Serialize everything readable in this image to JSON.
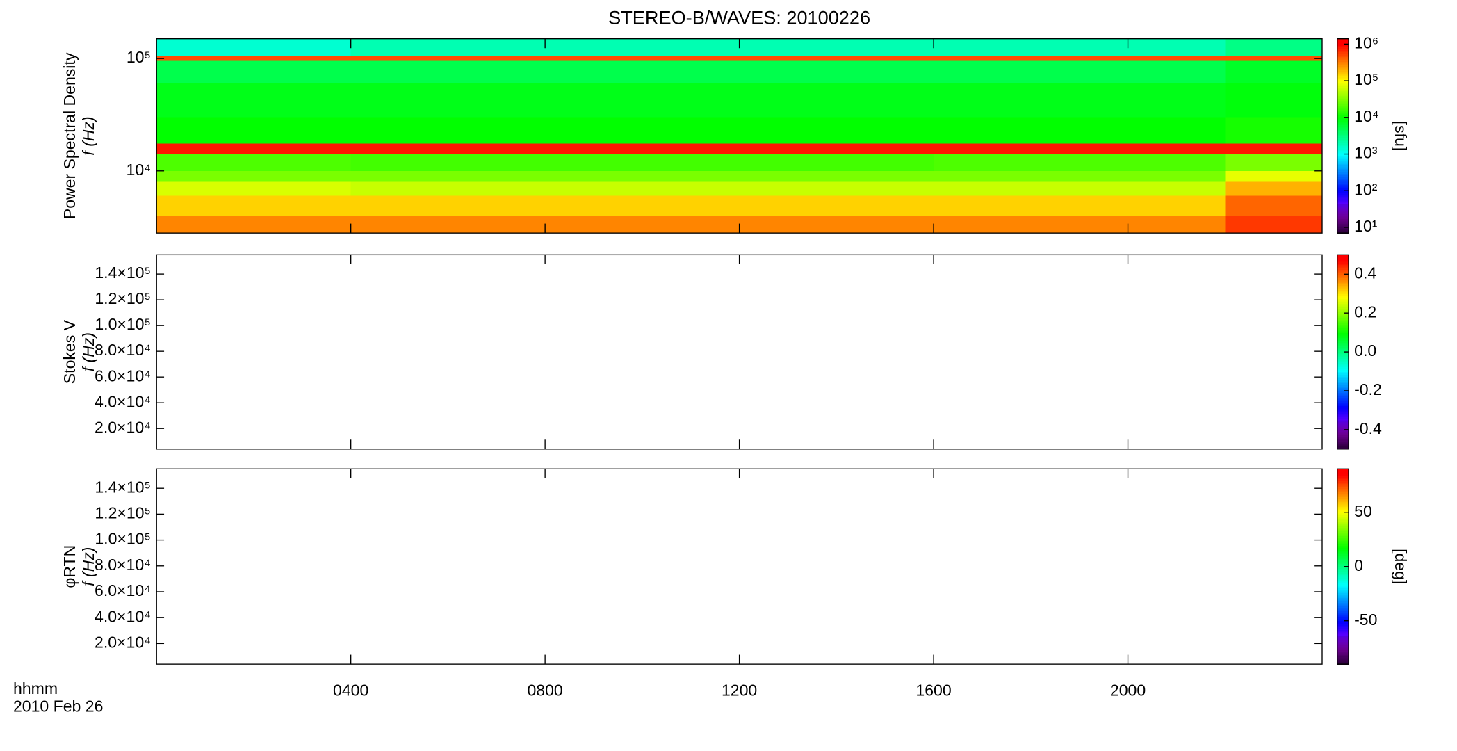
{
  "chart_data": [
    {
      "type": "heatmap",
      "title": "STEREO-B/WAVES: 20100226",
      "ylabel": [
        "Power Spectral Density",
        "f (Hz)"
      ],
      "xlim": [
        0,
        24
      ],
      "ylim": [
        2800,
        150000
      ],
      "ylog": true,
      "yticks": [
        {
          "value": 10000,
          "label": "10⁴"
        },
        {
          "value": 100000,
          "label": "10⁵"
        }
      ],
      "time_edges": [
        0,
        4,
        8,
        12,
        16,
        20,
        22,
        24
      ],
      "freq_edges": [
        2800,
        4000,
        6000,
        8000,
        10000,
        14000,
        17500,
        30000,
        60000,
        95000,
        105000,
        150000
      ],
      "values": [
        [
          300000,
          300000,
          300000,
          300000,
          300000,
          300000,
          600000
        ],
        [
          150000,
          150000,
          150000,
          150000,
          150000,
          150000,
          400000
        ],
        [
          70000,
          60000,
          60000,
          60000,
          60000,
          60000,
          200000
        ],
        [
          30000,
          30000,
          30000,
          30000,
          30000,
          30000,
          80000
        ],
        [
          20000,
          18000,
          18000,
          18000,
          20000,
          20000,
          30000
        ],
        [
          800000,
          800000,
          800000,
          800000,
          800000,
          800000,
          800000
        ],
        [
          10000,
          10000,
          10000,
          10000,
          10000,
          10000,
          12000
        ],
        [
          8000,
          8000,
          8000,
          8000,
          8000,
          8000,
          9000
        ],
        [
          5000,
          5000,
          5000,
          5000,
          5000,
          5000,
          7000
        ],
        [
          500000,
          500000,
          500000,
          500000,
          500000,
          500000,
          500000
        ],
        [
          1500,
          2000,
          2000,
          2000,
          2000,
          2000,
          3000
        ]
      ],
      "colorbar": {
        "label": "[sfu]",
        "log": true,
        "lim": [
          7,
          1400000
        ],
        "ticks": [
          {
            "value": 10,
            "label": "10¹"
          },
          {
            "value": 100,
            "label": "10²"
          },
          {
            "value": 1000,
            "label": "10³"
          },
          {
            "value": 10000,
            "label": "10⁴"
          },
          {
            "value": 100000,
            "label": "10⁵"
          },
          {
            "value": 1000000,
            "label": "10⁶"
          }
        ]
      }
    },
    {
      "type": "heatmap",
      "ylabel": [
        "Stokes V",
        "f (Hz)"
      ],
      "xlim": [
        0,
        24
      ],
      "ylim": [
        4000,
        155000
      ],
      "yticks": [
        {
          "value": 20000,
          "label": "2.0×10⁴"
        },
        {
          "value": 40000,
          "label": "4.0×10⁴"
        },
        {
          "value": 60000,
          "label": "6.0×10⁴"
        },
        {
          "value": 80000,
          "label": "8.0×10⁴"
        },
        {
          "value": 100000,
          "label": "1.0×10⁵"
        },
        {
          "value": 120000,
          "label": "1.2×10⁵"
        },
        {
          "value": 140000,
          "label": "1.4×10⁵"
        }
      ],
      "colorbar": {
        "log": false,
        "lim": [
          -0.5,
          0.5
        ],
        "ticks": [
          -0.4,
          -0.2,
          {
            "value": 0,
            "label": "0.0"
          },
          0.2,
          0.4
        ]
      }
    },
    {
      "type": "heatmap",
      "ylabel": [
        "φRTN",
        "f (Hz)"
      ],
      "xlim": [
        0,
        24
      ],
      "ylim": [
        4000,
        155000
      ],
      "yticks": [
        {
          "value": 20000,
          "label": "2.0×10⁴"
        },
        {
          "value": 40000,
          "label": "4.0×10⁴"
        },
        {
          "value": 60000,
          "label": "6.0×10⁴"
        },
        {
          "value": 80000,
          "label": "8.0×10⁴"
        },
        {
          "value": 100000,
          "label": "1.0×10⁵"
        },
        {
          "value": 120000,
          "label": "1.2×10⁵"
        },
        {
          "value": 140000,
          "label": "1.4×10⁵"
        }
      ],
      "xlabel": [
        "hhmm",
        "2010 Feb 26"
      ],
      "xticks": [
        {
          "value": 4,
          "label": "0400"
        },
        {
          "value": 8,
          "label": "0800"
        },
        {
          "value": 12,
          "label": "1200"
        },
        {
          "value": 16,
          "label": "1600"
        },
        {
          "value": 20,
          "label": "2000"
        }
      ],
      "colorbar": {
        "label": "[deg]",
        "log": false,
        "lim": [
          -90,
          90
        ],
        "ticks": [
          -50,
          0,
          50
        ]
      }
    }
  ]
}
